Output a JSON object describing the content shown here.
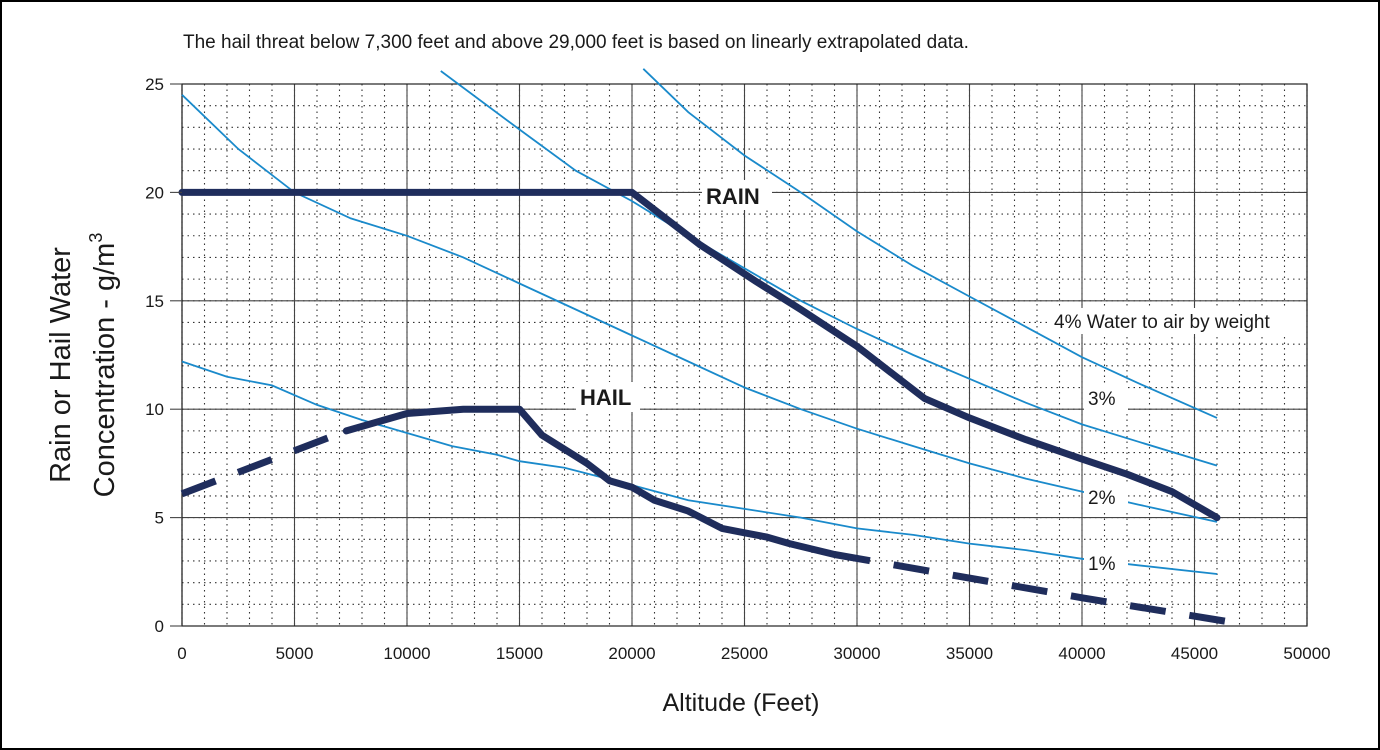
{
  "chart_data": {
    "type": "line",
    "note": "The hail threat below 7,300 feet and above 29,000 feet is based on linearly extrapolated data.",
    "xlabel": "Altitude (Feet)",
    "ylabel_line1": "Rain or Hail Water",
    "ylabel_line2_main": "Concentration - g/m",
    "ylabel_line2_sup": "3",
    "xlim": [
      0,
      50000
    ],
    "ylim": [
      0,
      25
    ],
    "x_ticks": [
      0,
      5000,
      10000,
      15000,
      20000,
      25000,
      30000,
      35000,
      40000,
      45000,
      50000
    ],
    "x_tick_labels": [
      "0",
      "5000",
      "10000",
      "15000",
      "20000",
      "25000",
      "30000",
      "35000",
      "40000",
      "45000",
      "50000"
    ],
    "y_ticks": [
      0,
      5,
      10,
      15,
      20,
      25
    ],
    "y_tick_labels": [
      "0",
      "5",
      "10",
      "15",
      "20",
      "25"
    ],
    "grid": true,
    "series": [
      {
        "name": "RAIN",
        "color": "#1f2d5c",
        "style": "solid-thick",
        "points": [
          [
            0,
            20
          ],
          [
            20000,
            20
          ],
          [
            23000,
            17.6
          ],
          [
            25500,
            15.9
          ],
          [
            27500,
            14.6
          ],
          [
            30000,
            12.9
          ],
          [
            33000,
            10.5
          ],
          [
            35000,
            9.6
          ],
          [
            37500,
            8.6
          ],
          [
            40000,
            7.7
          ],
          [
            42000,
            7.0
          ],
          [
            44000,
            6.2
          ],
          [
            46000,
            5.0
          ]
        ]
      },
      {
        "name": "HAIL",
        "color": "#1f2d5c",
        "style": "solid-thick",
        "points": [
          [
            7300,
            9.0
          ],
          [
            10000,
            9.8
          ],
          [
            12500,
            10.0
          ],
          [
            15000,
            10.0
          ],
          [
            16000,
            8.8
          ],
          [
            18000,
            7.5
          ],
          [
            19000,
            6.7
          ],
          [
            20000,
            6.4
          ],
          [
            21000,
            5.8
          ],
          [
            22500,
            5.3
          ],
          [
            24000,
            4.5
          ],
          [
            25000,
            4.3
          ],
          [
            26000,
            4.1
          ],
          [
            27000,
            3.8
          ],
          [
            29000,
            3.3
          ]
        ]
      },
      {
        "name": "HAIL (extrapolated)",
        "color": "#1f2d5c",
        "style": "dashed-thick",
        "segments": [
          [
            [
              0,
              6.1
            ],
            [
              7300,
              9.0
            ]
          ],
          [
            [
              29000,
              3.3
            ],
            [
              40000,
              1.3
            ],
            [
              46500,
              0.2
            ]
          ]
        ]
      },
      {
        "name": "1%",
        "color": "#1a8acb",
        "style": "thin",
        "points": [
          [
            0,
            12.2
          ],
          [
            2000,
            11.5
          ],
          [
            4000,
            11.1
          ],
          [
            6000,
            10.2
          ],
          [
            8000,
            9.5
          ],
          [
            10000,
            8.9
          ],
          [
            12000,
            8.3
          ],
          [
            14000,
            7.9
          ],
          [
            15000,
            7.6
          ],
          [
            17000,
            7.3
          ],
          [
            20000,
            6.5
          ],
          [
            22500,
            5.8
          ],
          [
            25000,
            5.4
          ],
          [
            27500,
            5.0
          ],
          [
            30000,
            4.5
          ],
          [
            32500,
            4.2
          ],
          [
            35000,
            3.8
          ],
          [
            37500,
            3.5
          ],
          [
            40000,
            3.1
          ],
          [
            42500,
            2.8
          ],
          [
            46000,
            2.4
          ]
        ]
      },
      {
        "name": "2%",
        "color": "#1a8acb",
        "style": "thin",
        "points": [
          [
            0,
            24.5
          ],
          [
            2500,
            22.0
          ],
          [
            5000,
            20.0
          ],
          [
            7500,
            18.8
          ],
          [
            10000,
            18.0
          ],
          [
            12500,
            17.0
          ],
          [
            15000,
            15.8
          ],
          [
            17500,
            14.6
          ],
          [
            20000,
            13.4
          ],
          [
            22500,
            12.2
          ],
          [
            25000,
            11.0
          ],
          [
            27500,
            10.0
          ],
          [
            30000,
            9.1
          ],
          [
            32500,
            8.3
          ],
          [
            35000,
            7.5
          ],
          [
            37500,
            6.8
          ],
          [
            40000,
            6.2
          ],
          [
            42500,
            5.6
          ],
          [
            46000,
            4.8
          ]
        ]
      },
      {
        "name": "3%",
        "color": "#1a8acb",
        "style": "thin",
        "points": [
          [
            11500,
            25.6
          ],
          [
            15000,
            22.9
          ],
          [
            17500,
            21.0
          ],
          [
            20000,
            19.6
          ],
          [
            22500,
            18.0
          ],
          [
            25000,
            16.5
          ],
          [
            27500,
            15.0
          ],
          [
            30000,
            13.7
          ],
          [
            32500,
            12.5
          ],
          [
            35000,
            11.4
          ],
          [
            37500,
            10.3
          ],
          [
            40000,
            9.3
          ],
          [
            42500,
            8.5
          ],
          [
            46000,
            7.4
          ]
        ]
      },
      {
        "name": "4% Water to air by weight",
        "color": "#1a8acb",
        "style": "thin",
        "points": [
          [
            20500,
            25.7
          ],
          [
            22500,
            23.7
          ],
          [
            25000,
            21.7
          ],
          [
            27500,
            20.0
          ],
          [
            30000,
            18.2
          ],
          [
            32500,
            16.6
          ],
          [
            35000,
            15.2
          ],
          [
            37500,
            13.8
          ],
          [
            40000,
            12.4
          ],
          [
            42500,
            11.2
          ],
          [
            46000,
            9.6
          ]
        ]
      }
    ],
    "annotations": {
      "rain": "RAIN",
      "hail": "HAIL",
      "pct4": "4% Water to air by weight",
      "pct3": "3%",
      "pct2": "2%",
      "pct1": "1%"
    }
  }
}
